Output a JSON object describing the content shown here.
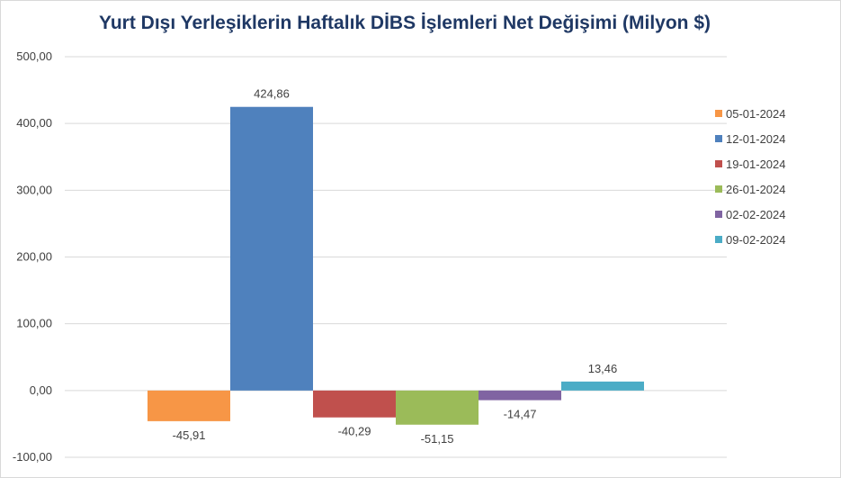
{
  "chart_data": {
    "type": "bar",
    "title": "Yurt Dışı Yerleşiklerin Haftalık DİBS İşlemleri Net Değişimi (Milyon $)",
    "ylim": [
      -100,
      500
    ],
    "yticks": [
      "500,00",
      "400,00",
      "300,00",
      "200,00",
      "100,00",
      "0,00",
      "-100,00"
    ],
    "ytick_values": [
      500,
      400,
      300,
      200,
      100,
      0,
      -100
    ],
    "grid": true,
    "legend_position": "right",
    "series": [
      {
        "name": "05-01-2024",
        "value": -45.91,
        "label": "-45,91",
        "color": "#f79646"
      },
      {
        "name": "12-01-2024",
        "value": 424.86,
        "label": "424,86",
        "color": "#4f81bd"
      },
      {
        "name": "19-01-2024",
        "value": -40.29,
        "label": "-40,29",
        "color": "#c0504d"
      },
      {
        "name": "26-01-2024",
        "value": -51.15,
        "label": "-51,15",
        "color": "#9bbb59"
      },
      {
        "name": "02-02-2024",
        "value": -14.47,
        "label": "-14,47",
        "color": "#8064a2"
      },
      {
        "name": "09-02-2024",
        "value": 13.46,
        "label": "13,46",
        "color": "#4bacc6"
      }
    ]
  }
}
